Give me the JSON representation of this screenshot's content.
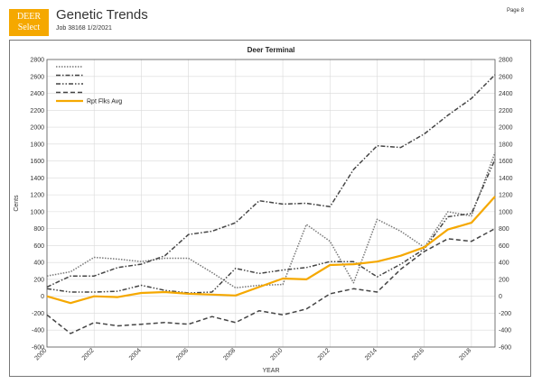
{
  "header": {
    "logo_line1": "DEER",
    "logo_line2": "Select",
    "title": "Genetic Trends",
    "subtitle": "Job 38168 1/2/2021",
    "page": "Page 8"
  },
  "colors": {
    "accent": "#f5a800",
    "series_dark": "#444444",
    "series_gray": "#777777"
  },
  "chart_data": {
    "type": "line",
    "title": "Deer Terminal",
    "xlabel": "YEAR",
    "ylabel": "Cents",
    "xlim": [
      2000,
      2019
    ],
    "ylim": [
      -600,
      2800
    ],
    "yticks": [
      -600,
      -400,
      -200,
      0,
      200,
      400,
      600,
      800,
      1000,
      1200,
      1400,
      1600,
      1800,
      2000,
      2200,
      2400,
      2600,
      2800
    ],
    "xticks": [
      2000,
      2002,
      2004,
      2006,
      2008,
      2010,
      2012,
      2014,
      2016,
      2018
    ],
    "grid": true,
    "legend_position": "top-left",
    "x": [
      2000,
      2001,
      2002,
      2003,
      2004,
      2005,
      2006,
      2007,
      2008,
      2009,
      2010,
      2011,
      2012,
      2013,
      2014,
      2015,
      2016,
      2017,
      2018,
      2019
    ],
    "series": [
      {
        "name": "",
        "style": "dotted",
        "color": "#777777",
        "values": [
          240,
          290,
          460,
          440,
          410,
          450,
          450,
          280,
          100,
          130,
          140,
          850,
          650,
          160,
          910,
          770,
          580,
          1000,
          950,
          1700
        ]
      },
      {
        "name": "",
        "style": "dashdot",
        "color": "#444444",
        "values": [
          110,
          240,
          240,
          340,
          380,
          480,
          730,
          770,
          870,
          1130,
          1090,
          1100,
          1060,
          1500,
          1780,
          1760,
          1920,
          2140,
          2340,
          2620
        ]
      },
      {
        "name": "",
        "style": "dashdotdot",
        "color": "#444444",
        "values": [
          90,
          50,
          50,
          60,
          130,
          70,
          40,
          50,
          330,
          270,
          310,
          340,
          410,
          410,
          230,
          380,
          560,
          940,
          980,
          1620
        ]
      },
      {
        "name": "",
        "style": "dashed",
        "color": "#444444",
        "values": [
          -220,
          -440,
          -310,
          -350,
          -330,
          -310,
          -330,
          -240,
          -310,
          -170,
          -220,
          -150,
          30,
          90,
          50,
          320,
          530,
          680,
          650,
          800
        ]
      },
      {
        "name": "Rpt Flks Avg",
        "style": "solid",
        "color": "#f5a800",
        "values": [
          0,
          -80,
          0,
          -10,
          40,
          50,
          30,
          20,
          10,
          110,
          210,
          200,
          370,
          380,
          410,
          480,
          580,
          790,
          870,
          1180
        ]
      }
    ]
  }
}
